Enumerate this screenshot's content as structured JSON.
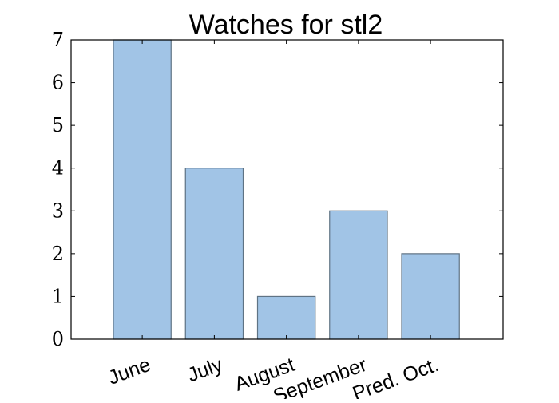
{
  "chart_data": {
    "type": "bar",
    "title": "Watches for stl2",
    "xlabel": "",
    "ylabel": "",
    "categories": [
      "June",
      "July",
      "August",
      "September",
      "Pred. Oct."
    ],
    "values": [
      7,
      4,
      1,
      3,
      2
    ],
    "ylim": [
      0,
      7
    ],
    "yticks": [
      "0",
      "1",
      "2",
      "3",
      "4",
      "5",
      "6",
      "7"
    ],
    "grid": false,
    "bar_color": "#a1c4e6",
    "bar_edge_color": "#5f7384"
  }
}
